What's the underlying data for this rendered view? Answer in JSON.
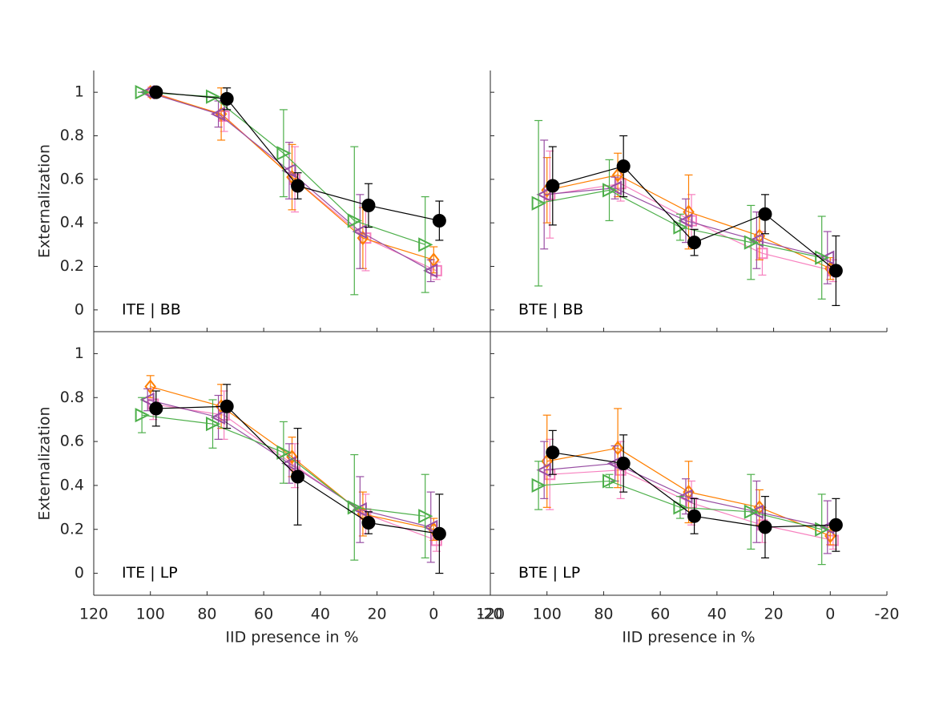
{
  "chart_data": [
    {
      "type": "line",
      "annotation": "ITE | BB",
      "ylabel": "Externalization",
      "xlim": [
        120,
        -20
      ],
      "xticks": [
        120,
        100,
        80,
        60,
        40,
        20,
        0,
        -20
      ],
      "show_xticklabels": false,
      "ylim": [
        -0.1,
        1.1
      ],
      "yticks": [
        0,
        0.2,
        0.4,
        0.6,
        0.8,
        1
      ],
      "show_yticklabels": true,
      "series": [
        {
          "color": "#000000",
          "marker": "circle",
          "x": [
            98,
            73,
            48,
            23,
            -2
          ],
          "values": [
            1.0,
            0.97,
            0.57,
            0.48,
            0.41
          ],
          "errors": [
            0,
            0.05,
            0.06,
            0.1,
            0.09
          ]
        },
        {
          "color": "#4daf4a",
          "marker": "triangle-right",
          "x": [
            103,
            78,
            53,
            28,
            3
          ],
          "values": [
            1.0,
            0.98,
            0.72,
            0.41,
            0.3
          ],
          "errors": [
            0,
            0,
            0.2,
            0.34,
            0.22
          ]
        },
        {
          "color": "#984ea3",
          "marker": "triangle-left",
          "x": [
            101,
            76,
            51,
            26,
            1
          ],
          "values": [
            1.0,
            0.9,
            0.64,
            0.36,
            0.18
          ],
          "errors": [
            0,
            0.06,
            0.13,
            0.17,
            0.05
          ]
        },
        {
          "color": "#ff7f00",
          "marker": "diamond",
          "x": [
            100,
            75,
            50,
            25,
            0
          ],
          "values": [
            1.0,
            0.9,
            0.61,
            0.33,
            0.23
          ],
          "errors": [
            0,
            0.12,
            0.15,
            0.14,
            0.06
          ]
        },
        {
          "color": "#f781bf",
          "marker": "square",
          "x": [
            99,
            74,
            49,
            24,
            -1
          ],
          "values": [
            1.0,
            0.89,
            0.6,
            0.33,
            0.18
          ],
          "errors": [
            0,
            0.07,
            0.15,
            0.15,
            0.04
          ]
        }
      ]
    },
    {
      "type": "line",
      "annotation": "BTE | BB",
      "xlim": [
        120,
        -20
      ],
      "xticks": [
        120,
        100,
        80,
        60,
        40,
        20,
        0,
        -20
      ],
      "show_xticklabels": false,
      "ylim": [
        -0.1,
        1.1
      ],
      "yticks": [
        0,
        0.2,
        0.4,
        0.6,
        0.8,
        1
      ],
      "show_yticklabels": false,
      "series": [
        {
          "color": "#000000",
          "marker": "circle",
          "x": [
            98,
            73,
            48,
            23,
            -2
          ],
          "values": [
            0.57,
            0.66,
            0.31,
            0.44,
            0.18
          ],
          "errors": [
            0.18,
            0.14,
            0.06,
            0.09,
            0.16
          ]
        },
        {
          "color": "#4daf4a",
          "marker": "triangle-right",
          "x": [
            103,
            78,
            53,
            28,
            3
          ],
          "values": [
            0.49,
            0.55,
            0.38,
            0.31,
            0.24
          ],
          "errors": [
            0.38,
            0.14,
            0.06,
            0.17,
            0.19
          ]
        },
        {
          "color": "#984ea3",
          "marker": "triangle-left",
          "x": [
            101,
            76,
            51,
            26,
            1
          ],
          "values": [
            0.53,
            0.56,
            0.41,
            0.32,
            0.24
          ],
          "errors": [
            0.25,
            0.05,
            0.1,
            0.13,
            0.12
          ]
        },
        {
          "color": "#ff7f00",
          "marker": "diamond",
          "x": [
            100,
            75,
            50,
            25,
            0
          ],
          "values": [
            0.55,
            0.62,
            0.45,
            0.34,
            0.19
          ],
          "errors": [
            0.15,
            0.1,
            0.17,
            0.11,
            0.05
          ]
        },
        {
          "color": "#f781bf",
          "marker": "square",
          "x": [
            99,
            74,
            49,
            24,
            -1
          ],
          "values": [
            0.53,
            0.58,
            0.41,
            0.26,
            0.18
          ],
          "errors": [
            0.2,
            0.08,
            0.12,
            0.1,
            0.05
          ]
        }
      ]
    },
    {
      "type": "line",
      "annotation": "ITE | LP",
      "ylabel": "Externalization",
      "xlabel": "IID presence in %",
      "xlim": [
        120,
        -20
      ],
      "xticks": [
        120,
        100,
        80,
        60,
        40,
        20,
        0,
        -20
      ],
      "show_xticklabels": true,
      "ylim": [
        -0.1,
        1.1
      ],
      "yticks": [
        0,
        0.2,
        0.4,
        0.6,
        0.8,
        1
      ],
      "show_yticklabels": true,
      "series": [
        {
          "color": "#000000",
          "marker": "circle",
          "x": [
            98,
            73,
            48,
            23,
            -2
          ],
          "values": [
            0.75,
            0.76,
            0.44,
            0.23,
            0.18
          ],
          "errors": [
            0.08,
            0.1,
            0.22,
            0.05,
            0.18
          ]
        },
        {
          "color": "#4daf4a",
          "marker": "triangle-right",
          "x": [
            103,
            78,
            53,
            28,
            3
          ],
          "values": [
            0.72,
            0.68,
            0.55,
            0.3,
            0.26
          ],
          "errors": [
            0.08,
            0.11,
            0.14,
            0.24,
            0.19
          ]
        },
        {
          "color": "#984ea3",
          "marker": "triangle-left",
          "x": [
            101,
            76,
            51,
            26,
            1
          ],
          "values": [
            0.79,
            0.71,
            0.5,
            0.29,
            0.21
          ],
          "errors": [
            0.05,
            0.1,
            0.09,
            0.15,
            0.16
          ]
        },
        {
          "color": "#ff7f00",
          "marker": "diamond",
          "x": [
            100,
            75,
            50,
            25,
            0
          ],
          "values": [
            0.85,
            0.76,
            0.53,
            0.27,
            0.2
          ],
          "errors": [
            0.05,
            0.1,
            0.09,
            0.1,
            0.05
          ]
        },
        {
          "color": "#f781bf",
          "marker": "square",
          "x": [
            99,
            74,
            49,
            24,
            -1
          ],
          "values": [
            0.77,
            0.72,
            0.49,
            0.27,
            0.15
          ],
          "errors": [
            0.07,
            0.11,
            0.1,
            0.09,
            0.05
          ]
        }
      ]
    },
    {
      "type": "line",
      "annotation": "BTE | LP",
      "xlabel": "IID presence in %",
      "xlim": [
        120,
        -20
      ],
      "xticks": [
        120,
        100,
        80,
        60,
        40,
        20,
        0,
        -20
      ],
      "show_xticklabels": true,
      "ylim": [
        -0.1,
        1.1
      ],
      "yticks": [
        0,
        0.2,
        0.4,
        0.6,
        0.8,
        1
      ],
      "show_yticklabels": false,
      "series": [
        {
          "color": "#000000",
          "marker": "circle",
          "x": [
            98,
            73,
            48,
            23,
            -2
          ],
          "values": [
            0.55,
            0.5,
            0.26,
            0.21,
            0.22
          ],
          "errors": [
            0.1,
            0.13,
            0.08,
            0.14,
            0.12
          ]
        },
        {
          "color": "#4daf4a",
          "marker": "triangle-right",
          "x": [
            103,
            78,
            53,
            28,
            3
          ],
          "values": [
            0.4,
            0.42,
            0.3,
            0.28,
            0.2
          ],
          "errors": [
            0.11,
            0.03,
            0.05,
            0.17,
            0.16
          ]
        },
        {
          "color": "#984ea3",
          "marker": "triangle-left",
          "x": [
            101,
            76,
            51,
            26,
            1
          ],
          "values": [
            0.47,
            0.5,
            0.35,
            0.28,
            0.21
          ],
          "errors": [
            0.13,
            0.08,
            0.08,
            0.14,
            0.12
          ]
        },
        {
          "color": "#ff7f00",
          "marker": "diamond",
          "x": [
            100,
            75,
            50,
            25,
            0
          ],
          "values": [
            0.51,
            0.57,
            0.37,
            0.3,
            0.17
          ],
          "errors": [
            0.21,
            0.18,
            0.14,
            0.08,
            0.04
          ]
        },
        {
          "color": "#f781bf",
          "marker": "square",
          "x": [
            99,
            74,
            49,
            24,
            -1
          ],
          "values": [
            0.45,
            0.47,
            0.32,
            0.22,
            0.15
          ],
          "errors": [
            0.16,
            0.13,
            0.1,
            0.08,
            0.04
          ]
        }
      ]
    }
  ]
}
